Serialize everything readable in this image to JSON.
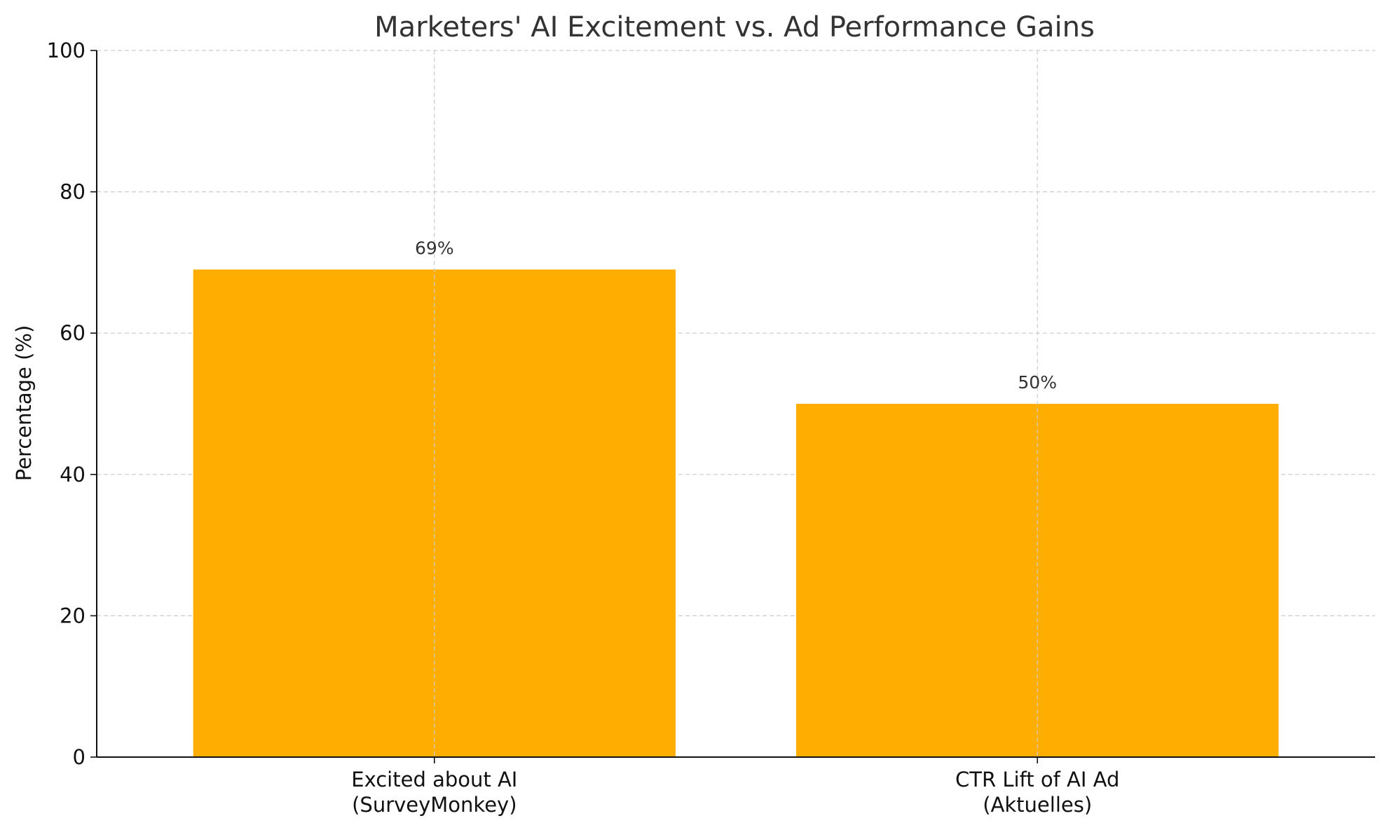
{
  "chart_data": {
    "type": "bar",
    "title": "Marketers' AI Excitement vs. Ad Performance Gains",
    "xlabel": "",
    "ylabel": "Percentage (%)",
    "ylim": [
      0,
      100
    ],
    "yticks": [
      0,
      20,
      40,
      60,
      80,
      100
    ],
    "grid": true,
    "categories": [
      [
        "Excited about AI",
        "(SurveyMonkey)"
      ],
      [
        "CTR Lift of AI Ad",
        "(Aktuelles)"
      ]
    ],
    "values": [
      69,
      50
    ],
    "data_labels": [
      "69%",
      "50%"
    ],
    "bar_color": "#FFAE00",
    "grid_color": "#cccccc",
    "text_color": "#333333"
  }
}
